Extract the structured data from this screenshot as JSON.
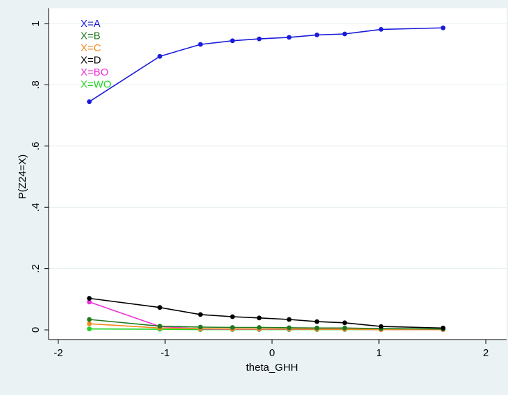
{
  "chart_data": {
    "type": "line",
    "title": "",
    "xlabel": "theta_GHH",
    "ylabel": "P(Z24=X)",
    "xlim": [
      -2,
      2
    ],
    "ylim": [
      0,
      1
    ],
    "xticks": [
      "-2",
      "-1",
      "0",
      "1",
      "2"
    ],
    "yticks": [
      "0",
      ".2",
      ".4",
      ".6",
      ".8",
      "1"
    ],
    "grid": "horizontal",
    "legend_position": "top-left",
    "x": [
      -1.71,
      -1.05,
      -0.67,
      -0.37,
      -0.12,
      0.16,
      0.42,
      0.68,
      1.02,
      1.6
    ],
    "series": [
      {
        "name": "X=A",
        "color": "#1a1adb",
        "values": [
          0.745,
          0.893,
          0.932,
          0.944,
          0.95,
          0.955,
          0.963,
          0.966,
          0.981,
          0.986
        ]
      },
      {
        "name": "X=B",
        "color": "#1f7a1f",
        "values": [
          0.034,
          0.012,
          0.009,
          0.008,
          0.008,
          0.007,
          0.006,
          0.006,
          0.004,
          0.003
        ]
      },
      {
        "name": "X=C",
        "color": "#f08c1e",
        "values": [
          0.02,
          0.006,
          0.004,
          0.003,
          0.003,
          0.003,
          0.002,
          0.002,
          0.001,
          0.001
        ]
      },
      {
        "name": "X=D",
        "color": "#000000",
        "values": [
          0.103,
          0.073,
          0.05,
          0.043,
          0.039,
          0.034,
          0.027,
          0.023,
          0.011,
          0.006
        ]
      },
      {
        "name": "X=BO",
        "color": "#ee2ed6",
        "values": [
          0.091,
          0.011,
          0.003,
          0.002,
          0.002,
          0.002,
          0.002,
          0.002,
          0.001,
          0.001
        ]
      },
      {
        "name": "X=WO",
        "color": "#25d425",
        "values": [
          0.003,
          0.002,
          0.001,
          0.001,
          0.001,
          0.001,
          0.001,
          0.001,
          0.001,
          0.001
        ]
      }
    ]
  }
}
